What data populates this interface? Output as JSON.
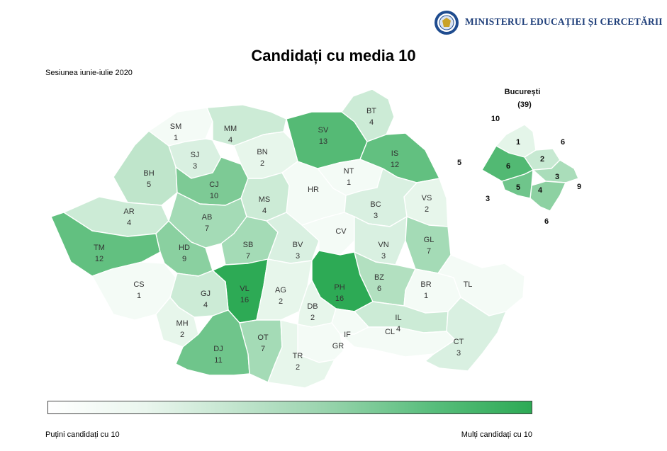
{
  "header": {
    "ministry_name": "MINISTERUL EDUCAȚIEI ȘI CERCETĂRII"
  },
  "title": "Candidați cu media 10",
  "subtitle": "Sesiunea iunie-iulie 2020",
  "colors": {
    "min": "#f4fbf6",
    "max": "#2daa55"
  },
  "counties": [
    {
      "code": "SM",
      "value": 1
    },
    {
      "code": "MM",
      "value": 4
    },
    {
      "code": "SV",
      "value": 13
    },
    {
      "code": "BT",
      "value": 4
    },
    {
      "code": "SJ",
      "value": 3
    },
    {
      "code": "BN",
      "value": 2
    },
    {
      "code": "IS",
      "value": 12
    },
    {
      "code": "NT",
      "value": 1
    },
    {
      "code": "BH",
      "value": 5
    },
    {
      "code": "CJ",
      "value": 10
    },
    {
      "code": "HR",
      "value": null
    },
    {
      "code": "VS",
      "value": 2
    },
    {
      "code": "AR",
      "value": 4
    },
    {
      "code": "MS",
      "value": 4
    },
    {
      "code": "BC",
      "value": 3
    },
    {
      "code": "AB",
      "value": 7
    },
    {
      "code": "TM",
      "value": 12
    },
    {
      "code": "HD",
      "value": 9
    },
    {
      "code": "SB",
      "value": 7
    },
    {
      "code": "BV",
      "value": 3
    },
    {
      "code": "CV",
      "value": null
    },
    {
      "code": "VN",
      "value": 3
    },
    {
      "code": "GL",
      "value": 7
    },
    {
      "code": "CS",
      "value": 1
    },
    {
      "code": "VL",
      "value": 16
    },
    {
      "code": "AG",
      "value": 2
    },
    {
      "code": "PH",
      "value": 16
    },
    {
      "code": "BZ",
      "value": 6
    },
    {
      "code": "BR",
      "value": 1
    },
    {
      "code": "TL",
      "value": null
    },
    {
      "code": "GJ",
      "value": 4
    },
    {
      "code": "DB",
      "value": 2
    },
    {
      "code": "MH",
      "value": 2
    },
    {
      "code": "IL",
      "value": 4
    },
    {
      "code": "DJ",
      "value": 11
    },
    {
      "code": "OT",
      "value": 7
    },
    {
      "code": "IF",
      "value": null
    },
    {
      "code": "GR",
      "value": null
    },
    {
      "code": "CL",
      "value": null
    },
    {
      "code": "TR",
      "value": 2
    },
    {
      "code": "CT",
      "value": 3
    }
  ],
  "bucharest": {
    "title": "București",
    "total": "(39)",
    "sectors": [
      {
        "value": 1,
        "outside": "10"
      },
      {
        "value": 2,
        "outside": "6"
      },
      {
        "value": 3,
        "outside": "9"
      },
      {
        "value": 4,
        "outside": "6"
      },
      {
        "value": 5,
        "outside": "3"
      },
      {
        "value": 6,
        "outside": "5"
      }
    ]
  },
  "legend": {
    "low_label": "Puțini candidați cu 10",
    "high_label": "Mulți candidați cu 10"
  }
}
